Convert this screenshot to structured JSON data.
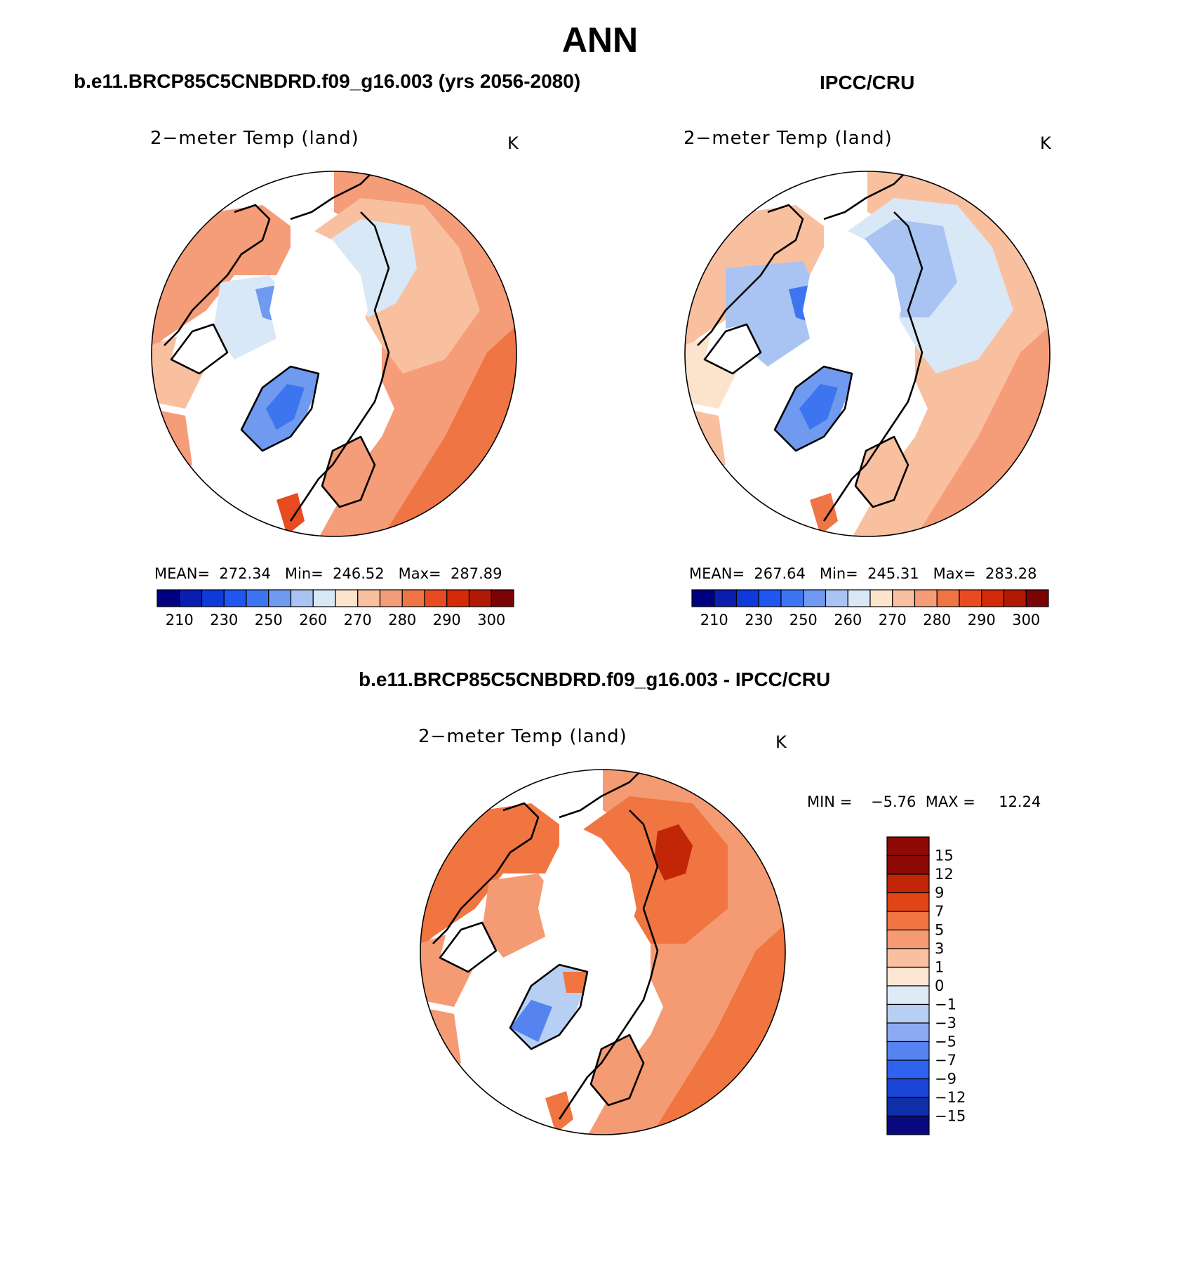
{
  "figure": {
    "title": "ANN"
  },
  "colors": {
    "absolute_scale": [
      "#000080",
      "#0a1fb0",
      "#0d3ad8",
      "#1f57f0",
      "#3d74f0",
      "#7099f0",
      "#a9c4f2",
      "#d9e8f7",
      "#fce3cc",
      "#f9c0a0",
      "#f59c78",
      "#f07545",
      "#e94b20",
      "#d52a08",
      "#b01a05",
      "#7a0404"
    ],
    "difference_scale": [
      "#0a0a80",
      "#0f2fa8",
      "#1a45d6",
      "#2f62f0",
      "#5584f0",
      "#8ca9f2",
      "#b8cff4",
      "#deebf7",
      "#fde6d2",
      "#f9c0a0",
      "#f59b73",
      "#f07540",
      "#e14516",
      "#c12706",
      "#8e0a04"
    ]
  },
  "panels": {
    "left": {
      "title": "b.e11.BRCP85C5CNBDRD.f09_g16.003 (yrs 2056-2080)",
      "variable": "2−meter Temp (land)",
      "units": "K",
      "stats": "MEAN=  272.34   Min=  246.52   Max=  287.89",
      "colorbar_ticks": [
        "210",
        "230",
        "250",
        "260",
        "270",
        "280",
        "290",
        "300"
      ]
    },
    "right": {
      "title": "IPCC/CRU",
      "variable": "2−meter Temp (land)",
      "units": "K",
      "stats": "MEAN=  267.64   Min=  245.31   Max=  283.28",
      "colorbar_ticks": [
        "210",
        "230",
        "250",
        "260",
        "270",
        "280",
        "290",
        "300"
      ]
    },
    "bottom": {
      "title": "b.e11.BRCP85C5CNBDRD.f09_g16.003 - IPCC/CRU",
      "variable": "2−meter Temp (land)",
      "units": "K",
      "stats": "MIN =    −5.76  MAX =     12.24",
      "colorbar_ticks": [
        "15",
        "12",
        "9",
        "7",
        "5",
        "3",
        "1",
        "0",
        "−1",
        "−3",
        "−5",
        "−7",
        "−9",
        "−12",
        "−15"
      ]
    }
  }
}
